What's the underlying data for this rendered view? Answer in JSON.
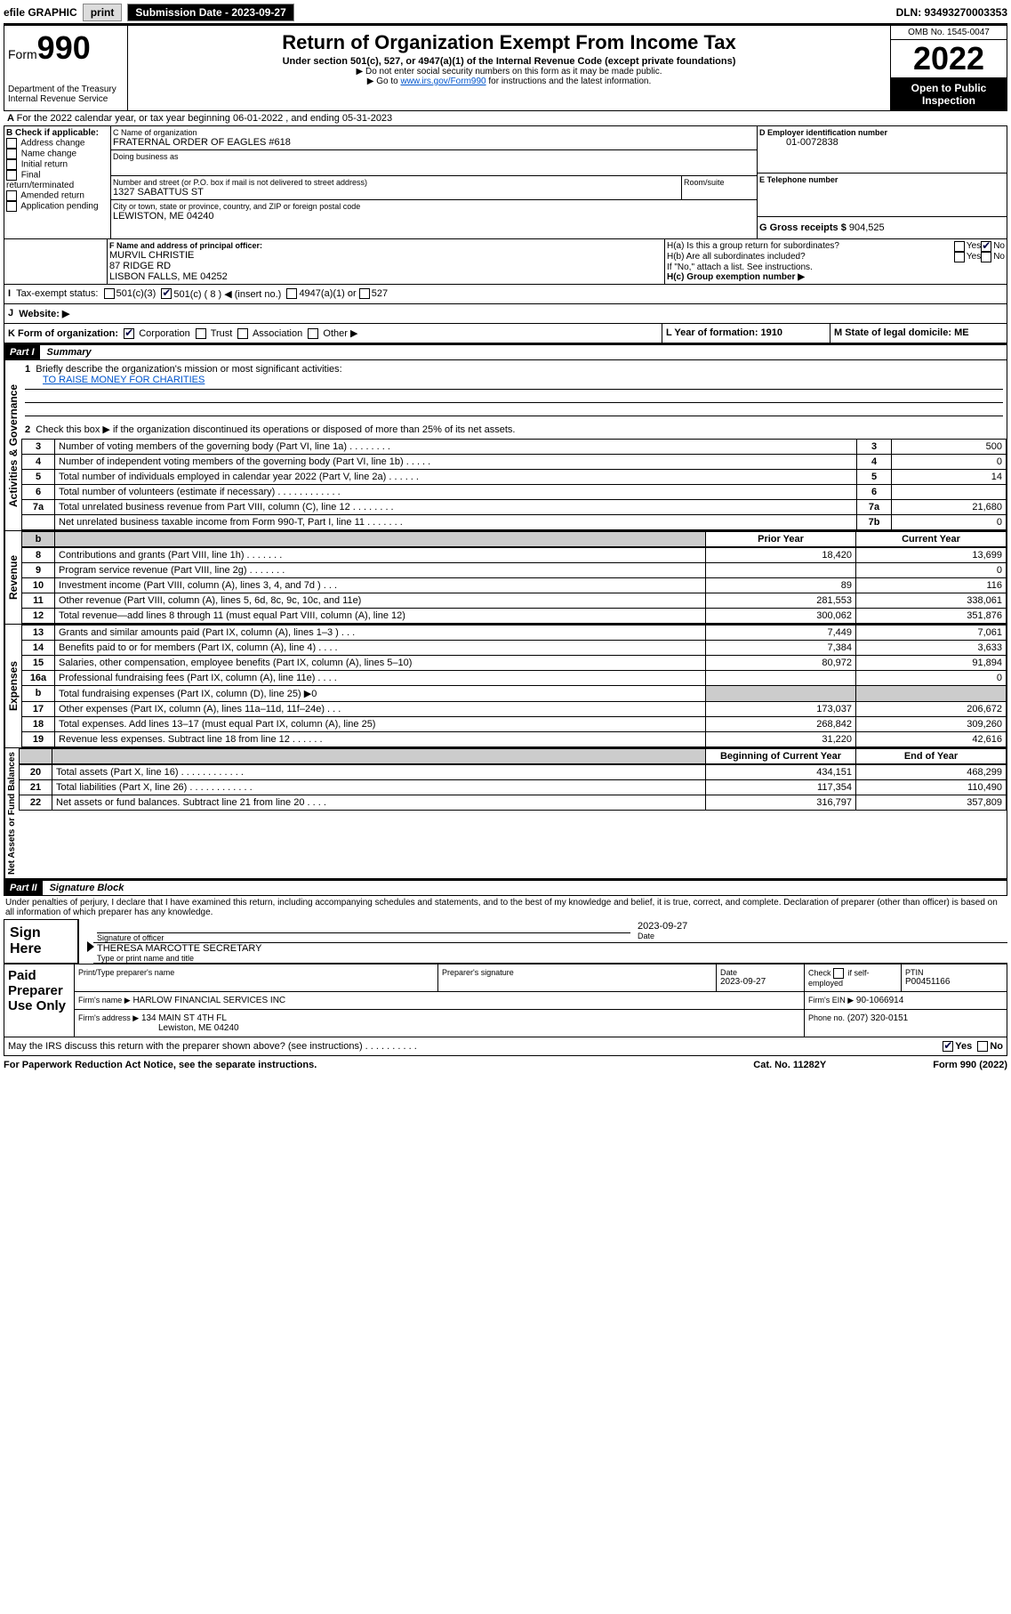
{
  "topbar": {
    "efile": "efile GRAPHIC",
    "print": "print",
    "sub_label": "Submission Date - 2023-09-27",
    "dln": "DLN: 93493270003353"
  },
  "header": {
    "form_label": "Form",
    "form_num": "990",
    "dept": "Department of the Treasury",
    "irs": "Internal Revenue Service",
    "title": "Return of Organization Exempt From Income Tax",
    "sub": "Under section 501(c), 527, or 4947(a)(1) of the Internal Revenue Code (except private foundations)",
    "note1": "Do not enter social security numbers on this form as it may be made public.",
    "note2_pre": "Go to ",
    "note2_link": "www.irs.gov/Form990",
    "note2_post": " for instructions and the latest information.",
    "omb": "OMB No. 1545-0047",
    "year": "2022",
    "inspect": "Open to Public Inspection"
  },
  "lineA": "For the 2022 calendar year, or tax year beginning 06-01-2022   , and ending 05-31-2023",
  "boxB": {
    "label": "B Check if applicable:",
    "items": [
      "Address change",
      "Name change",
      "Initial return",
      "Final return/terminated",
      "Amended return",
      "Application pending"
    ]
  },
  "boxC": {
    "label": "C Name of organization",
    "name": "FRATERNAL ORDER OF EAGLES #618",
    "dba": "Doing business as",
    "street_label": "Number and street (or P.O. box if mail is not delivered to street address)",
    "room_label": "Room/suite",
    "street": "1327 SABATTUS ST",
    "city_label": "City or town, state or province, country, and ZIP or foreign postal code",
    "city": "LEWISTON, ME  04240"
  },
  "boxD": {
    "label": "D Employer identification number",
    "val": "01-0072838"
  },
  "boxE": {
    "label": "E Telephone number"
  },
  "boxG": {
    "label": "G Gross receipts $",
    "val": "904,525"
  },
  "boxF": {
    "label": "F Name and address of principal officer:",
    "l1": "MURVIL CHRISTIE",
    "l2": "87 RIDGE RD",
    "l3": "LISBON FALLS, ME  04252"
  },
  "boxH": {
    "a": "H(a)  Is this a group return for subordinates?",
    "b": "H(b)  Are all subordinates included?",
    "note": "If \"No,\" attach a list. See instructions.",
    "c": "H(c)  Group exemption number ▶",
    "yes": "Yes",
    "no": "No"
  },
  "boxI": {
    "label": "Tax-exempt status:",
    "o1": "501(c)(3)",
    "o2": "501(c) ( 8 ) ◀ (insert no.)",
    "o3": "4947(a)(1) or",
    "o4": "527"
  },
  "boxJ": {
    "label": "Website: ▶"
  },
  "boxK": {
    "label": "K Form of organization:",
    "o1": "Corporation",
    "o2": "Trust",
    "o3": "Association",
    "o4": "Other ▶"
  },
  "boxL": {
    "label": "L Year of formation: 1910"
  },
  "boxM": {
    "label": "M State of legal domicile: ME"
  },
  "part1": {
    "hdr": "Part I",
    "title": "Summary",
    "l1": "Briefly describe the organization's mission or most significant activities:",
    "l1v": "TO RAISE MONEY FOR CHARITIES",
    "l2": "Check this box ▶        if the organization discontinued its operations or disposed of more than 25% of its net assets.",
    "rows_a": [
      {
        "n": "3",
        "t": "Number of voting members of the governing body (Part VI, line 1a)   .    .    .    .    .    .    .    .",
        "rn": "3",
        "v": "500"
      },
      {
        "n": "4",
        "t": "Number of independent voting members of the governing body (Part VI, line 1b)   .    .    .    .    .",
        "rn": "4",
        "v": "0"
      },
      {
        "n": "5",
        "t": "Total number of individuals employed in calendar year 2022 (Part V, line 2a)    .    .    .    .    .    .",
        "rn": "5",
        "v": "14"
      },
      {
        "n": "6",
        "t": "Total number of volunteers (estimate if necessary)   .    .    .    .    .    .    .    .    .    .    .    .",
        "rn": "6",
        "v": ""
      },
      {
        "n": "7a",
        "t": "Total unrelated business revenue from Part VIII, column (C), line 12   .    .    .    .    .    .    .    .",
        "rn": "7a",
        "v": "21,680"
      },
      {
        "n": "",
        "t": "Net unrelated business taxable income from Form 990-T, Part I, line 11   .    .    .    .    .    .    .",
        "rn": "7b",
        "v": "0"
      }
    ],
    "col_prior": "Prior Year",
    "col_curr": "Current Year",
    "rev": [
      {
        "n": "8",
        "t": "Contributions and grants (Part VIII, line 1h)    .    .    .    .    .    .    .",
        "p": "18,420",
        "c": "13,699"
      },
      {
        "n": "9",
        "t": "Program service revenue (Part VIII, line 2g)   .    .    .    .    .    .    .",
        "p": "",
        "c": "0"
      },
      {
        "n": "10",
        "t": "Investment income (Part VIII, column (A), lines 3, 4, and 7d )    .    .    .",
        "p": "89",
        "c": "116"
      },
      {
        "n": "11",
        "t": "Other revenue (Part VIII, column (A), lines 5, 6d, 8c, 9c, 10c, and 11e)",
        "p": "281,553",
        "c": "338,061"
      },
      {
        "n": "12",
        "t": "Total revenue—add lines 8 through 11 (must equal Part VIII, column (A), line 12)",
        "p": "300,062",
        "c": "351,876"
      }
    ],
    "exp": [
      {
        "n": "13",
        "t": "Grants and similar amounts paid (Part IX, column (A), lines 1–3 )   .    .    .",
        "p": "7,449",
        "c": "7,061"
      },
      {
        "n": "14",
        "t": "Benefits paid to or for members (Part IX, column (A), line 4)   .    .    .    .",
        "p": "7,384",
        "c": "3,633"
      },
      {
        "n": "15",
        "t": "Salaries, other compensation, employee benefits (Part IX, column (A), lines 5–10)",
        "p": "80,972",
        "c": "91,894"
      },
      {
        "n": "16a",
        "t": "Professional fundraising fees (Part IX, column (A), line 11e)   .    .    .    .",
        "p": "",
        "c": "0"
      },
      {
        "n": "b",
        "t": "Total fundraising expenses (Part IX, column (D), line 25) ▶0",
        "p": "shade",
        "c": "shade"
      },
      {
        "n": "17",
        "t": "Other expenses (Part IX, column (A), lines 11a–11d, 11f–24e)   .    .    .",
        "p": "173,037",
        "c": "206,672"
      },
      {
        "n": "18",
        "t": "Total expenses. Add lines 13–17 (must equal Part IX, column (A), line 25)",
        "p": "268,842",
        "c": "309,260"
      },
      {
        "n": "19",
        "t": "Revenue less expenses. Subtract line 18 from line 12   .    .    .    .    .    .",
        "p": "31,220",
        "c": "42,616"
      }
    ],
    "col_beg": "Beginning of Current Year",
    "col_end": "End of Year",
    "net": [
      {
        "n": "20",
        "t": "Total assets (Part X, line 16)   .    .    .    .    .    .    .    .    .    .    .    .",
        "p": "434,151",
        "c": "468,299"
      },
      {
        "n": "21",
        "t": "Total liabilities (Part X, line 26)   .    .    .    .    .    .    .    .    .    .    .    .",
        "p": "117,354",
        "c": "110,490"
      },
      {
        "n": "22",
        "t": "Net assets or fund balances. Subtract line 21 from line 20   .    .    .    .",
        "p": "316,797",
        "c": "357,809"
      }
    ],
    "side_gov": "Activities & Governance",
    "side_rev": "Revenue",
    "side_exp": "Expenses",
    "side_net": "Net Assets or Fund Balances"
  },
  "part2": {
    "hdr": "Part II",
    "title": "Signature Block",
    "decl": "Under penalties of perjury, I declare that I have examined this return, including accompanying schedules and statements, and to the best of my knowledge and belief, it is true, correct, and complete. Declaration of preparer (other than officer) is based on all information of which preparer has any knowledge."
  },
  "sign": {
    "here": "Sign Here",
    "sig_label": "Signature of officer",
    "date_label": "Date",
    "date": "2023-09-27",
    "name": "THERESA MARCOTTE SECRETARY",
    "name_label": "Type or print name and title"
  },
  "paid": {
    "label": "Paid Preparer Use Only",
    "h1": "Print/Type preparer's name",
    "h2": "Preparer's signature",
    "h3": "Date",
    "h3v": "2023-09-27",
    "h4a": "Check",
    "h4b": "if self-employed",
    "h5": "PTIN",
    "h5v": "P00451166",
    "firm_l": "Firm's name   ▶",
    "firm": "HARLOW FINANCIAL SERVICES INC",
    "ein_l": "Firm's EIN ▶",
    "ein": "90-1066914",
    "addr_l": "Firm's address ▶",
    "addr1": "134 MAIN ST 4TH FL",
    "addr2": "Lewiston, ME  04240",
    "phone_l": "Phone no.",
    "phone": "(207) 320-0151"
  },
  "discuss": {
    "q": "May the IRS discuss this return with the preparer shown above? (see instructions)   .    .    .    .    .    .    .    .    .    .",
    "yes": "Yes",
    "no": "No"
  },
  "footer": {
    "l": "For Paperwork Reduction Act Notice, see the separate instructions.",
    "m": "Cat. No. 11282Y",
    "r": "Form 990 (2022)"
  }
}
